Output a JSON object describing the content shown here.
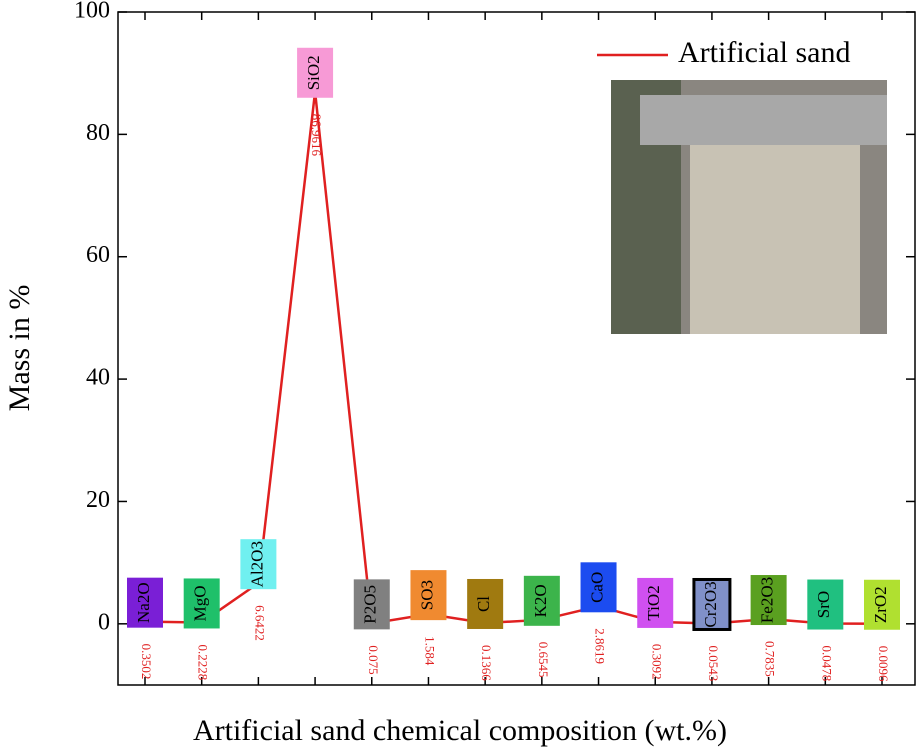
{
  "chart_data": {
    "type": "line",
    "x_label": "Artificial sand chemical composition (wt.%)",
    "y_label": "Mass in %",
    "categories": [
      "Na2O",
      "MgO",
      "Al2O3",
      "SiO2",
      "P2O5",
      "SO3",
      "Cl",
      "K2O",
      "CaO",
      "TiO2",
      "Cr2O3",
      "Fe2O3",
      "SrO",
      "ZrO2"
    ],
    "label_colors": [
      "#7a1fd6",
      "#1fc06a",
      "#70f0f0",
      "#f79ad6",
      "#808080",
      "#f08a30",
      "#a07a10",
      "#3cb44b",
      "#1c4cf0",
      "#d050f0",
      "#8090c8",
      "#5aa020",
      "#20c080",
      "#b0e030"
    ],
    "series": [
      {
        "name": "Artificial sand",
        "color": "#e02020",
        "values": [
          0.3502,
          0.2228,
          6.6422,
          86.9616,
          0.075,
          1.584,
          0.1366,
          0.6545,
          2.8619,
          0.3092,
          0.0543,
          0.7835,
          0.0478,
          0.0096
        ]
      }
    ],
    "ylim": [
      -10,
      100
    ],
    "yticks": [
      0,
      20,
      40,
      60,
      80,
      100
    ]
  }
}
